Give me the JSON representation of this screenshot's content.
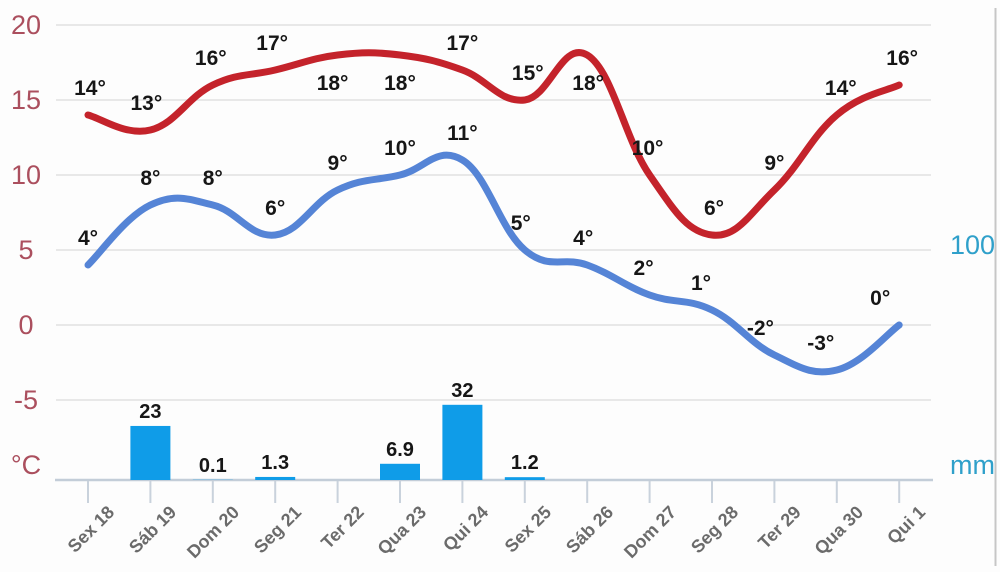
{
  "page": {
    "background": "#fdfdfd"
  },
  "chart_data": {
    "type": "line",
    "subtype": "weather combo: two smoothed temperature lines + precipitation bars",
    "title": "",
    "xlabel": "",
    "ylabel": "",
    "x_labels": [
      "Sex 18",
      "Sáb 19",
      "Dom 20",
      "Seg 21",
      "Ter 22",
      "Qua 23",
      "Qui 24",
      "Sex 25",
      "Sáb 26",
      "Dom 27",
      "Seg 28",
      "Ter 29",
      "Qua 30",
      "Qui 1"
    ],
    "left_axis": {
      "tick_labels": [
        "20",
        "15",
        "10",
        "5",
        "0",
        "-5"
      ],
      "tick_values": [
        20,
        15,
        10,
        5,
        0,
        -5
      ],
      "unit": "°C",
      "color": "#ab4f5e",
      "range": [
        -5,
        20
      ]
    },
    "right_axis": {
      "tick_labels": [
        "100"
      ],
      "tick_values": [
        100
      ],
      "unit": "mm",
      "color": "#2fa0ca",
      "range": [
        0,
        100
      ]
    },
    "series": [
      {
        "name": "max-temperature",
        "type": "line",
        "unit": "°C",
        "color": "#c4232b",
        "values": [
          14,
          13,
          16,
          17,
          18,
          18,
          17,
          15,
          18,
          10,
          6,
          9,
          14,
          16
        ],
        "point_labels": [
          "14°",
          "13°",
          "16°",
          "17°",
          "18°",
          "18°",
          "17°",
          "15°",
          "18°",
          "10°",
          "6°",
          "9°",
          "14°",
          "16°"
        ],
        "label_side": [
          "above",
          "above",
          "above",
          "above",
          "below",
          "below",
          "above",
          "above",
          "below",
          "above",
          "above",
          "above",
          "above",
          "above"
        ],
        "label_dx": [
          2,
          -4,
          -2,
          -3,
          -5,
          0,
          0,
          3,
          1,
          -2,
          2,
          0,
          4,
          3
        ]
      },
      {
        "name": "min-temperature",
        "type": "line",
        "unit": "°C",
        "color": "#5584d6",
        "values": [
          4,
          8,
          8,
          6,
          9,
          10,
          11,
          5,
          4,
          2,
          1,
          -2,
          -3,
          0
        ],
        "point_labels": [
          "4°",
          "8°",
          "8°",
          "6°",
          "9°",
          "10°",
          "11°",
          "5°",
          "4°",
          "2°",
          "1°",
          "-2°",
          "-3°",
          "0°"
        ],
        "label_side": [
          "above",
          "above",
          "above",
          "above",
          "above",
          "above",
          "above",
          "above",
          "above",
          "above",
          "above",
          "above",
          "above",
          "above"
        ],
        "label_dx": [
          0,
          0,
          0,
          0,
          0,
          0,
          0,
          -4,
          -4,
          -6,
          -11,
          -14,
          -16,
          -19
        ]
      },
      {
        "name": "precipitation",
        "type": "bar",
        "unit": "mm",
        "color": "#0f9ce8",
        "values": [
          null,
          23,
          0.1,
          1.3,
          null,
          6.9,
          32,
          1.2,
          null,
          null,
          null,
          null,
          null,
          null
        ],
        "point_labels": [
          "",
          "23",
          "0.1",
          "1.3",
          "",
          "6.9",
          "32",
          "1.2",
          "",
          "",
          "",
          "",
          "",
          ""
        ]
      }
    ],
    "grid": true,
    "legend": "none",
    "colors": {
      "gridline": "#e2e2e2",
      "axis_line": "#c3cdd8",
      "tick_mark": "#c9d2dc",
      "screen_edge": "#c6c6c6"
    }
  }
}
